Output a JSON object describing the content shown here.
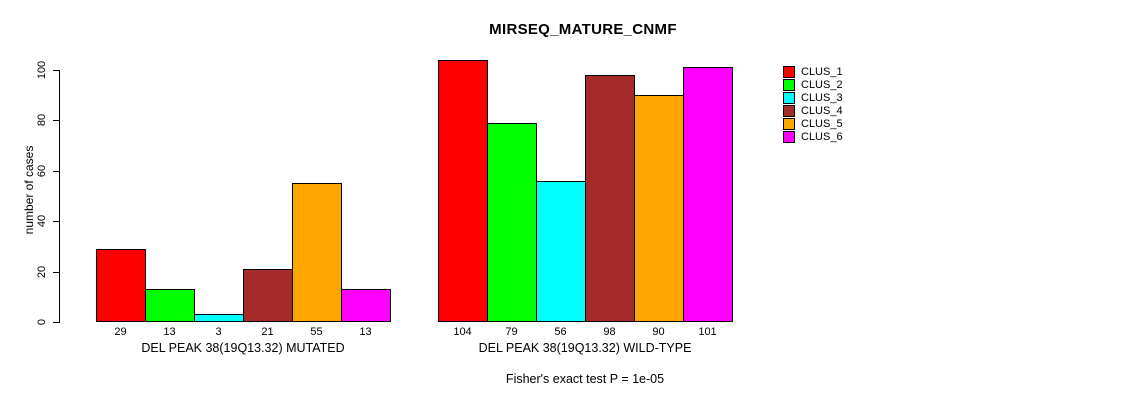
{
  "chart_data": {
    "type": "bar",
    "title": "MIRSEQ_MATURE_CNMF",
    "ylabel": "number of cases",
    "xlabel": "",
    "ylim": [
      0,
      100
    ],
    "yticks": [
      0,
      20,
      40,
      60,
      80,
      100
    ],
    "grid": false,
    "legend_position": "right",
    "series": [
      {
        "name": "CLUS_1",
        "color": "#FF0000"
      },
      {
        "name": "CLUS_2",
        "color": "#00FF00"
      },
      {
        "name": "CLUS_3",
        "color": "#00FFFF"
      },
      {
        "name": "CLUS_4",
        "color": "#A52A2A"
      },
      {
        "name": "CLUS_5",
        "color": "#FFA500"
      },
      {
        "name": "CLUS_6",
        "color": "#FF00FF"
      }
    ],
    "groups": [
      {
        "label": "DEL PEAK 38(19Q13.32) MUTATED",
        "values": [
          29,
          13,
          3,
          21,
          55,
          13
        ]
      },
      {
        "label": "DEL PEAK 38(19Q13.32) WILD-TYPE",
        "values": [
          104,
          79,
          56,
          98,
          90,
          101
        ]
      }
    ],
    "bar_value_labels": true,
    "annotation": "Fisher's exact test P = 1e-05"
  }
}
